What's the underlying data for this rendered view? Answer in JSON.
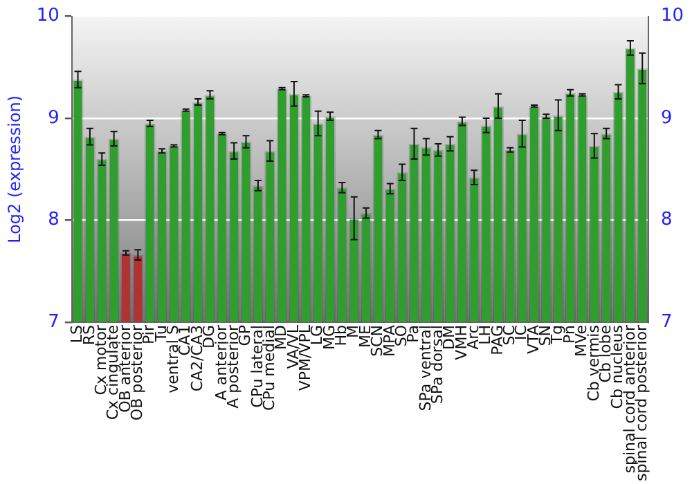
{
  "chart_data": {
    "type": "bar",
    "ylabel": "Log2 (expression)",
    "categories": [
      "LS",
      "RS",
      "Cx motor",
      "Cx cingulate",
      "OB anterior",
      "OB posterior",
      "Pir",
      "Tu",
      "ventral S",
      "CA1",
      "CA2/CA3",
      "DG",
      "A anterior",
      "A posterior",
      "GP",
      "CPu lateral",
      "CPu medial",
      "MD",
      "VA/VL",
      "VPM/VPL",
      "LG",
      "MG",
      "Hb",
      "M",
      "ME",
      "SCN",
      "MPA",
      "SO",
      "Pa",
      "SPa ventral",
      "SPa dorsal",
      "DM",
      "VMH",
      "Arc",
      "LH",
      "PAG",
      "SC",
      "IC",
      "VTA",
      "SN",
      "Tg",
      "Pn",
      "MVe",
      "Cb vermis",
      "Cb lobe",
      "Cb nucleus",
      "spinal cord anterior",
      "spinal cord posterior"
    ],
    "values": [
      9.38,
      8.82,
      8.6,
      8.8,
      7.68,
      7.66,
      8.95,
      8.68,
      8.73,
      9.08,
      9.16,
      9.23,
      8.85,
      8.68,
      8.77,
      8.34,
      8.68,
      9.29,
      9.24,
      9.22,
      8.95,
      9.02,
      8.32,
      8.02,
      8.07,
      8.84,
      8.31,
      8.47,
      8.75,
      8.72,
      8.69,
      8.75,
      8.97,
      8.42,
      8.93,
      9.12,
      8.69,
      8.85,
      9.12,
      9.02,
      9.03,
      9.25,
      9.23,
      8.73,
      8.85,
      9.26,
      9.69,
      9.49
    ],
    "errors": [
      0.08,
      0.08,
      0.06,
      0.07,
      0.02,
      0.05,
      0.03,
      0.02,
      0.01,
      0.01,
      0.03,
      0.04,
      0.01,
      0.08,
      0.06,
      0.05,
      0.1,
      0.01,
      0.12,
      0.01,
      0.12,
      0.04,
      0.05,
      0.21,
      0.05,
      0.04,
      0.05,
      0.08,
      0.15,
      0.08,
      0.06,
      0.07,
      0.04,
      0.07,
      0.07,
      0.12,
      0.02,
      0.13,
      0.01,
      0.02,
      0.15,
      0.03,
      0.01,
      0.12,
      0.05,
      0.07,
      0.07,
      0.15
    ],
    "colors": [
      "#2f9e2f",
      "#2f9e2f",
      "#2f9e2f",
      "#2f9e2f",
      "#b03232",
      "#b03232",
      "#2f9e2f",
      "#2f9e2f",
      "#2f9e2f",
      "#2f9e2f",
      "#2f9e2f",
      "#2f9e2f",
      "#2f9e2f",
      "#2f9e2f",
      "#2f9e2f",
      "#2f9e2f",
      "#2f9e2f",
      "#2f9e2f",
      "#2f9e2f",
      "#2f9e2f",
      "#2f9e2f",
      "#2f9e2f",
      "#2f9e2f",
      "#2f9e2f",
      "#2f9e2f",
      "#2f9e2f",
      "#2f9e2f",
      "#2f9e2f",
      "#2f9e2f",
      "#2f9e2f",
      "#2f9e2f",
      "#2f9e2f",
      "#2f9e2f",
      "#2f9e2f",
      "#2f9e2f",
      "#2f9e2f",
      "#2f9e2f",
      "#2f9e2f",
      "#2f9e2f",
      "#2f9e2f",
      "#2f9e2f",
      "#2f9e2f",
      "#2f9e2f",
      "#2f9e2f",
      "#2f9e2f",
      "#2f9e2f",
      "#2f9e2f",
      "#2f9e2f"
    ],
    "ylim": [
      7,
      10
    ],
    "yticks": [
      7,
      8,
      9,
      10
    ],
    "y2lim": [
      7,
      10
    ],
    "y2ticks": [
      7,
      8,
      9,
      10
    ],
    "grid": "y",
    "legend": false
  }
}
